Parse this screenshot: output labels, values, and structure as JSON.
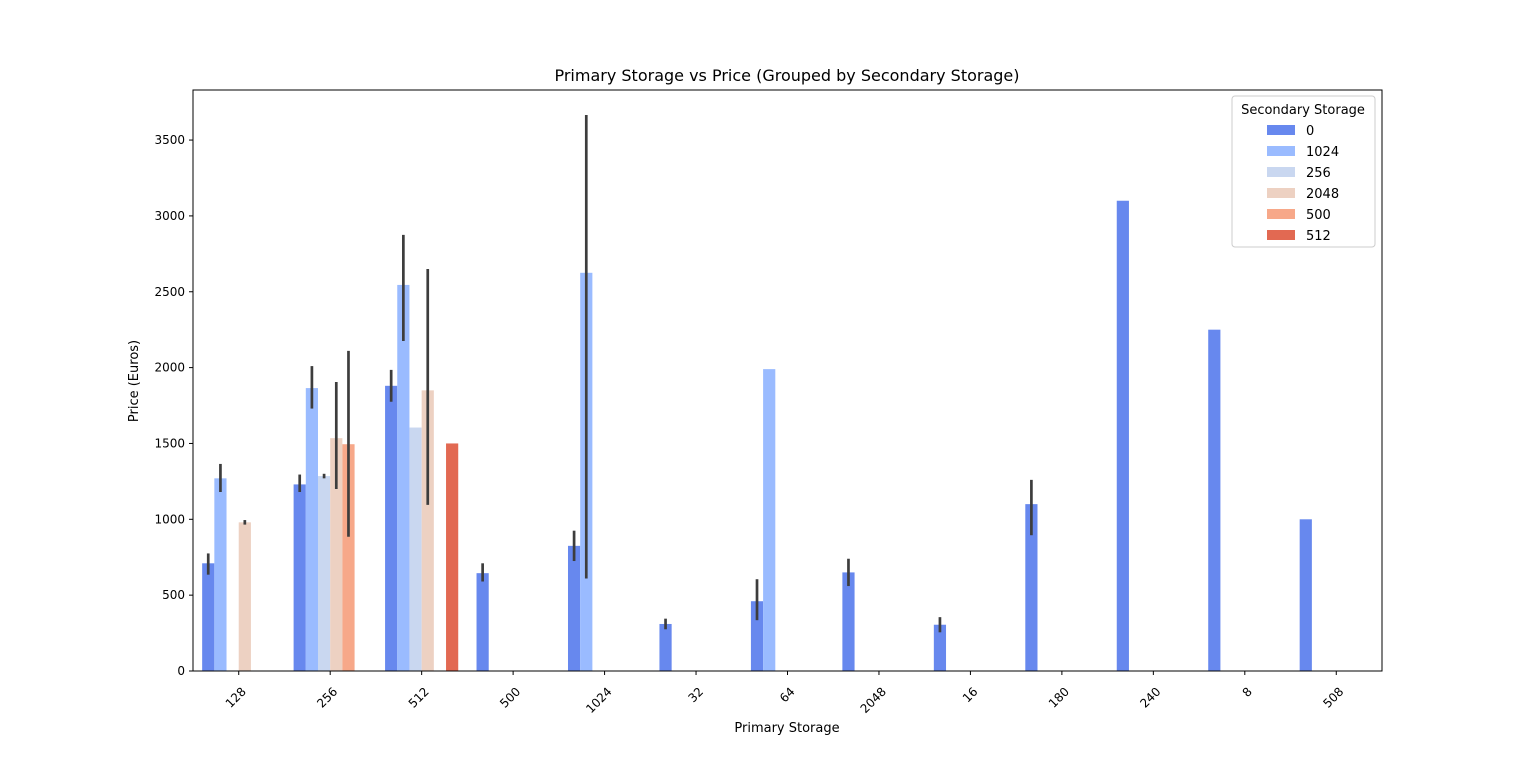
{
  "chart_data": {
    "type": "bar",
    "title": "Primary Storage vs Price (Grouped by Secondary Storage)",
    "xlabel": "Primary Storage",
    "ylabel": "Price (Euros)",
    "ylim": [
      0,
      3830
    ],
    "yticks": [
      0,
      500,
      1000,
      1500,
      2000,
      2500,
      3000,
      3500
    ],
    "grid": false,
    "legend_position": "top-right",
    "legend_title": "Secondary Storage",
    "categories": [
      "128",
      "256",
      "512",
      "500",
      "1024",
      "32",
      "64",
      "2048",
      "16",
      "180",
      "240",
      "8",
      "508"
    ],
    "series": [
      {
        "name": "0",
        "color": "#6788ee",
        "values": [
          710,
          1230,
          1880,
          645,
          825,
          310,
          460,
          650,
          305,
          1100,
          3100,
          2250,
          1000
        ],
        "ci": [
          [
            635,
            775
          ],
          [
            1180,
            1295
          ],
          [
            1775,
            1985
          ],
          [
            590,
            710
          ],
          [
            725,
            925
          ],
          [
            275,
            345
          ],
          [
            335,
            605
          ],
          [
            560,
            740
          ],
          [
            255,
            355
          ],
          [
            895,
            1260
          ],
          null,
          null,
          null
        ]
      },
      {
        "name": "1024",
        "color": "#9abbff",
        "values": [
          1270,
          1865,
          2545,
          null,
          2625,
          null,
          1990,
          null,
          null,
          null,
          null,
          null,
          null
        ],
        "ci": [
          [
            1180,
            1365
          ],
          [
            1730,
            2010
          ],
          [
            2175,
            2875
          ],
          null,
          [
            610,
            3665
          ],
          null,
          null,
          null,
          null,
          null,
          null,
          null,
          null
        ]
      },
      {
        "name": "256",
        "color": "#c9d7f0",
        "values": [
          null,
          1285,
          1605,
          null,
          null,
          null,
          null,
          null,
          null,
          null,
          null,
          null,
          null
        ],
        "ci": [
          null,
          [
            1270,
            1300
          ],
          null,
          null,
          null,
          null,
          null,
          null,
          null,
          null,
          null,
          null,
          null
        ]
      },
      {
        "name": "2048",
        "color": "#edd1c2",
        "values": [
          980,
          1535,
          1850,
          null,
          null,
          null,
          null,
          null,
          null,
          null,
          null,
          null,
          null
        ],
        "ci": [
          [
            965,
            995
          ],
          [
            1200,
            1905
          ],
          [
            1095,
            2650
          ],
          null,
          null,
          null,
          null,
          null,
          null,
          null,
          null,
          null,
          null
        ]
      },
      {
        "name": "500",
        "color": "#f7a889",
        "values": [
          null,
          1495,
          null,
          null,
          null,
          null,
          null,
          null,
          null,
          null,
          null,
          null,
          null
        ],
        "ci": [
          null,
          [
            885,
            2110
          ],
          null,
          null,
          null,
          null,
          null,
          null,
          null,
          null,
          null,
          null,
          null
        ]
      },
      {
        "name": "512",
        "color": "#e26952",
        "values": [
          null,
          null,
          1500,
          null,
          null,
          null,
          null,
          null,
          null,
          null,
          null,
          null,
          null
        ],
        "ci": [
          null,
          null,
          null,
          null,
          null,
          null,
          null,
          null,
          null,
          null,
          null,
          null,
          null
        ]
      }
    ]
  }
}
